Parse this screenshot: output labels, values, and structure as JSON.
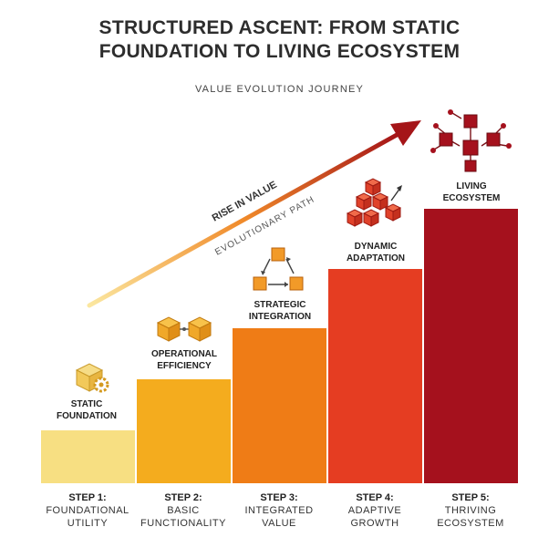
{
  "title_line1": "STRUCTURED ASCENT: FROM STATIC",
  "title_line2": "FOUNDATION TO LIVING ECOSYSTEM",
  "subtitle": "VALUE EVOLUTION JOURNEY",
  "arrow": {
    "label_primary": "RISE IN VALUE",
    "label_secondary": "EVOLUTIONARY PATH"
  },
  "steps": [
    {
      "label": "STATIC\nFOUNDATION",
      "step": "STEP 1:",
      "desc": "FOUNDATIONAL\nUTILITY",
      "color": "#f7df82"
    },
    {
      "label": "OPERATIONAL\nEFFICIENCY",
      "step": "STEP 2:",
      "desc": "BASIC\nFUNCTIONALITY",
      "color": "#f4ac1e"
    },
    {
      "label": "STRATEGIC\nINTEGRATION",
      "step": "STEP 3:",
      "desc": "INTEGRATED\nVALUE",
      "color": "#ef7c16"
    },
    {
      "label": "DYNAMIC\nADAPTATION",
      "step": "STEP 4:",
      "desc": "ADAPTIVE\nGROWTH",
      "color": "#e53d22"
    },
    {
      "label": "LIVING\nECOSYSTEM",
      "step": "STEP 5:",
      "desc": "THRIVING\nECOSYSTEM",
      "color": "#a5111d"
    }
  ],
  "icons": [
    "cube-gear-icon",
    "linked-cubes-icon",
    "cycle-cubes-icon",
    "cube-stack-icon",
    "network-cubes-icon"
  ]
}
